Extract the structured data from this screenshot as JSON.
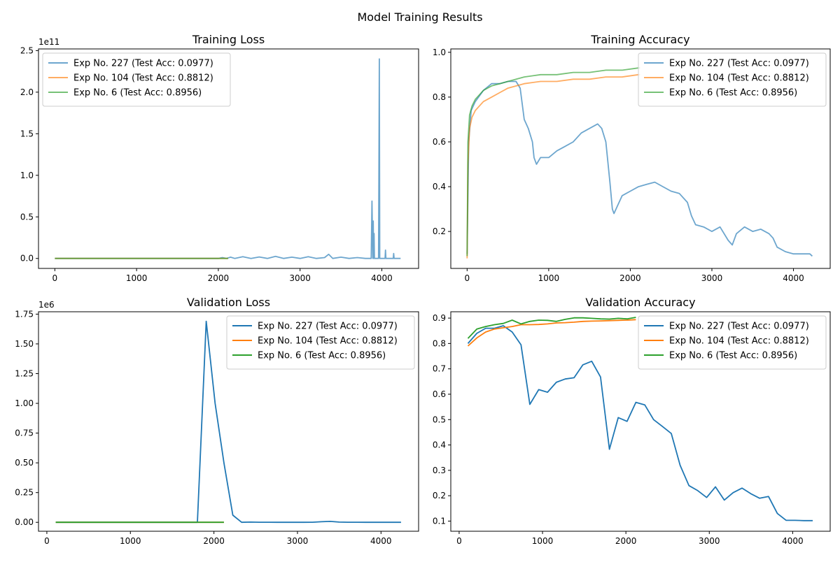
{
  "figure_title": "Model Training Results",
  "colors": {
    "exp227": "#1f77b4",
    "exp104": "#ff7f0e",
    "exp6": "#2ca02c"
  },
  "legend_labels": [
    "Exp No. 227 (Test Acc: 0.0977)",
    "Exp No. 104 (Test Acc: 0.8812)",
    "Exp No. 6 (Test Acc: 0.8956)"
  ],
  "chart_data": [
    {
      "id": "train_loss",
      "type": "line",
      "title": "Training Loss",
      "xlabel": "",
      "ylabel": "",
      "xlim": [
        -200,
        4450
      ],
      "ylim": [
        -12000000000,
        252000000000
      ],
      "xticks": [
        0,
        1000,
        2000,
        3000,
        4000
      ],
      "yticks": [
        0,
        50000000000,
        100000000000,
        150000000000,
        200000000000,
        250000000000
      ],
      "ytick_labels": [
        "0.0",
        "0.5",
        "1.0",
        "1.5",
        "2.0",
        "2.5"
      ],
      "offset_label": "1e11",
      "legend_position": "upper-left",
      "alpha": 0.65,
      "grid": false,
      "series": [
        {
          "name": "Exp No. 227 (Test Acc: 0.0977)",
          "x": [
            0,
            2000,
            2050,
            2100,
            2150,
            2200,
            2300,
            2400,
            2500,
            2600,
            2700,
            2800,
            2900,
            3000,
            3100,
            3200,
            3300,
            3350,
            3400,
            3500,
            3600,
            3700,
            3800,
            3870,
            3880,
            3890,
            3895,
            3900,
            3905,
            3910,
            3920,
            3960,
            3970,
            3975,
            3980,
            3985,
            3990,
            4000,
            4040,
            4045,
            4050,
            4100,
            4140,
            4145,
            4150,
            4200,
            4230
          ],
          "y": [
            0,
            0,
            1000000000,
            0,
            1500000000,
            0,
            2000000000,
            0,
            1800000000,
            0,
            2500000000,
            0,
            1500000000,
            0,
            2000000000,
            0,
            1000000000,
            5000000000,
            0,
            1500000000,
            0,
            1000000000,
            0,
            0,
            69000000000,
            0,
            45000000000,
            0,
            30000000000,
            0,
            0,
            0,
            240000000000,
            0,
            0,
            0,
            0,
            0,
            0,
            10000000000,
            0,
            0,
            0,
            6000000000,
            0,
            0,
            0
          ]
        },
        {
          "name": "Exp No. 104 (Test Acc: 0.8812)",
          "x": [
            0,
            2120
          ],
          "y": [
            0,
            0
          ]
        },
        {
          "name": "Exp No. 6 (Test Acc: 0.8956)",
          "x": [
            0,
            2120
          ],
          "y": [
            0,
            0
          ]
        }
      ]
    },
    {
      "id": "train_acc",
      "type": "line",
      "title": "Training Accuracy",
      "xlabel": "",
      "ylabel": "",
      "xlim": [
        -200,
        4450
      ],
      "ylim": [
        0.035,
        1.015
      ],
      "xticks": [
        0,
        1000,
        2000,
        3000,
        4000
      ],
      "yticks": [
        0.2,
        0.4,
        0.6,
        0.8,
        1.0
      ],
      "ytick_labels": [
        "0.2",
        "0.4",
        "0.6",
        "0.8",
        "1.0"
      ],
      "offset_label": "",
      "legend_position": "upper-right",
      "alpha": 0.65,
      "grid": false,
      "series": [
        {
          "name": "Exp No. 227 (Test Acc: 0.0977)",
          "x": [
            0,
            20,
            50,
            100,
            200,
            300,
            400,
            500,
            600,
            650,
            700,
            750,
            800,
            820,
            850,
            900,
            1000,
            1100,
            1200,
            1300,
            1400,
            1500,
            1600,
            1650,
            1700,
            1750,
            1780,
            1800,
            1850,
            1900,
            2000,
            2100,
            2200,
            2300,
            2400,
            2500,
            2600,
            2700,
            2750,
            2800,
            2900,
            3000,
            3100,
            3200,
            3250,
            3300,
            3400,
            3500,
            3600,
            3700,
            3750,
            3800,
            3900,
            4000,
            4100,
            4200,
            4230
          ],
          "y": [
            0.1,
            0.6,
            0.74,
            0.78,
            0.83,
            0.86,
            0.86,
            0.87,
            0.87,
            0.84,
            0.7,
            0.66,
            0.6,
            0.53,
            0.5,
            0.53,
            0.53,
            0.56,
            0.58,
            0.6,
            0.64,
            0.66,
            0.68,
            0.66,
            0.6,
            0.42,
            0.3,
            0.28,
            0.32,
            0.36,
            0.38,
            0.4,
            0.41,
            0.42,
            0.4,
            0.38,
            0.37,
            0.33,
            0.27,
            0.23,
            0.22,
            0.2,
            0.22,
            0.16,
            0.14,
            0.19,
            0.22,
            0.2,
            0.21,
            0.19,
            0.17,
            0.13,
            0.11,
            0.1,
            0.1,
            0.1,
            0.09
          ]
        },
        {
          "name": "Exp No. 104 (Test Acc: 0.8812)",
          "x": [
            0,
            10,
            30,
            60,
            100,
            150,
            200,
            300,
            400,
            500,
            700,
            900,
            1100,
            1300,
            1500,
            1700,
            1900,
            2100,
            2120
          ],
          "y": [
            0.08,
            0.5,
            0.66,
            0.71,
            0.74,
            0.76,
            0.78,
            0.8,
            0.82,
            0.84,
            0.86,
            0.87,
            0.87,
            0.88,
            0.88,
            0.89,
            0.89,
            0.9,
            0.9
          ]
        },
        {
          "name": "Exp No. 6 (Test Acc: 0.8956)",
          "x": [
            0,
            10,
            30,
            60,
            100,
            150,
            200,
            300,
            400,
            500,
            700,
            900,
            1100,
            1300,
            1500,
            1700,
            1900,
            2100,
            2120
          ],
          "y": [
            0.09,
            0.6,
            0.72,
            0.76,
            0.79,
            0.81,
            0.83,
            0.85,
            0.86,
            0.87,
            0.89,
            0.9,
            0.9,
            0.91,
            0.91,
            0.92,
            0.92,
            0.93,
            0.93
          ]
        }
      ]
    },
    {
      "id": "val_loss",
      "type": "line",
      "title": "Validation Loss",
      "xlabel": "",
      "ylabel": "",
      "xlim": [
        -100,
        4450
      ],
      "ylim": [
        -75000,
        1770000
      ],
      "xticks": [
        0,
        1000,
        2000,
        3000,
        4000
      ],
      "yticks": [
        0,
        250000,
        500000,
        750000,
        1000000,
        1250000,
        1500000,
        1750000
      ],
      "ytick_labels": [
        "0.00",
        "0.25",
        "0.50",
        "0.75",
        "1.00",
        "1.25",
        "1.50",
        "1.75"
      ],
      "offset_label": "1e6",
      "legend_position": "upper-right",
      "alpha": 1,
      "grid": false,
      "series": [
        {
          "name": "Exp No. 227 (Test Acc: 0.0977)",
          "x": [
            106,
            212,
            318,
            424,
            530,
            636,
            742,
            848,
            954,
            1060,
            1166,
            1272,
            1378,
            1484,
            1590,
            1696,
            1802,
            1908,
            2014,
            2120,
            2226,
            2332,
            2438,
            2544,
            2650,
            2756,
            2862,
            2968,
            3074,
            3180,
            3286,
            3392,
            3498,
            3604,
            3710,
            3816,
            3922,
            4028,
            4134,
            4240
          ],
          "y": [
            0,
            0,
            0,
            0,
            0,
            0,
            0,
            0,
            0,
            0,
            0,
            0,
            0,
            0,
            0,
            0,
            0,
            1690000,
            1000000,
            500000,
            60000,
            0,
            2000,
            1000,
            1000,
            500,
            500,
            500,
            500,
            800,
            5000,
            8000,
            2000,
            1000,
            1000,
            500,
            500,
            300,
            200,
            100
          ]
        },
        {
          "name": "Exp No. 104 (Test Acc: 0.8812)",
          "x": [
            106,
            2120
          ],
          "y": [
            0,
            0
          ]
        },
        {
          "name": "Exp No. 6 (Test Acc: 0.8956)",
          "x": [
            106,
            2120
          ],
          "y": [
            0,
            0
          ]
        }
      ]
    },
    {
      "id": "val_acc",
      "type": "line",
      "title": "Validation Accuracy",
      "xlabel": "",
      "ylabel": "",
      "xlim": [
        -100,
        4450
      ],
      "ylim": [
        0.06,
        0.925
      ],
      "xticks": [
        0,
        1000,
        2000,
        3000,
        4000
      ],
      "yticks": [
        0.1,
        0.2,
        0.3,
        0.4,
        0.5,
        0.6,
        0.7,
        0.8,
        0.9
      ],
      "ytick_labels": [
        "0.1",
        "0.2",
        "0.3",
        "0.4",
        "0.5",
        "0.6",
        "0.7",
        "0.8",
        "0.9"
      ],
      "offset_label": "",
      "legend_position": "upper-right",
      "alpha": 1,
      "grid": false,
      "series": [
        {
          "name": "Exp No. 227 (Test Acc: 0.0977)",
          "x": [
            106,
            212,
            318,
            424,
            530,
            636,
            742,
            848,
            954,
            1060,
            1166,
            1272,
            1378,
            1484,
            1590,
            1696,
            1802,
            1908,
            2014,
            2120,
            2226,
            2332,
            2438,
            2544,
            2650,
            2756,
            2862,
            2968,
            3074,
            3180,
            3286,
            3392,
            3498,
            3604,
            3710,
            3816,
            3922,
            4028,
            4134,
            4240
          ],
          "y": [
            0.8,
            0.84,
            0.86,
            0.86,
            0.87,
            0.845,
            0.795,
            0.56,
            0.618,
            0.608,
            0.647,
            0.66,
            0.665,
            0.716,
            0.73,
            0.668,
            0.383,
            0.508,
            0.493,
            0.568,
            0.558,
            0.5,
            0.473,
            0.445,
            0.32,
            0.24,
            0.22,
            0.193,
            0.235,
            0.183,
            0.212,
            0.23,
            0.208,
            0.19,
            0.197,
            0.13,
            0.103,
            0.103,
            0.102,
            0.102
          ]
        },
        {
          "name": "Exp No. 104 (Test Acc: 0.8812)",
          "x": [
            106,
            212,
            318,
            424,
            530,
            636,
            742,
            848,
            954,
            1060,
            1166,
            1272,
            1378,
            1484,
            1590,
            1696,
            1802,
            1908,
            2014,
            2120
          ],
          "y": [
            0.79,
            0.822,
            0.845,
            0.857,
            0.862,
            0.867,
            0.874,
            0.874,
            0.875,
            0.877,
            0.881,
            0.882,
            0.884,
            0.887,
            0.888,
            0.889,
            0.89,
            0.891,
            0.892,
            0.894
          ]
        },
        {
          "name": "Exp No. 6 (Test Acc: 0.8956)",
          "x": [
            106,
            212,
            318,
            424,
            530,
            636,
            742,
            848,
            954,
            1060,
            1166,
            1272,
            1378,
            1484,
            1590,
            1696,
            1802,
            1908,
            2014,
            2120
          ],
          "y": [
            0.82,
            0.857,
            0.867,
            0.874,
            0.879,
            0.892,
            0.877,
            0.887,
            0.892,
            0.891,
            0.887,
            0.895,
            0.901,
            0.901,
            0.899,
            0.897,
            0.896,
            0.899,
            0.897,
            0.903
          ]
        }
      ]
    }
  ]
}
